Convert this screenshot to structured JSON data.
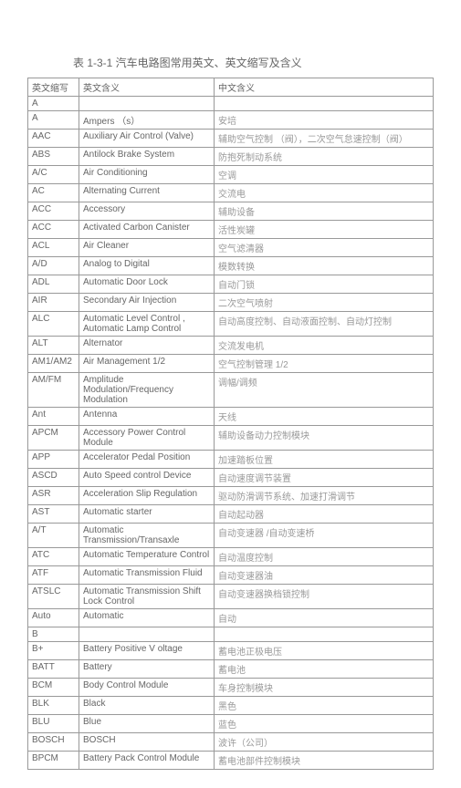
{
  "title": "表 1-3-1  汽车电路图常用英文、英文缩写及含义",
  "headers": {
    "abbr": "英文缩写",
    "en": "英文含义",
    "cn": "中文含义"
  },
  "rows": [
    {
      "abbr": "A",
      "en": "",
      "cn": ""
    },
    {
      "abbr": "A",
      "en": "Ampers （s）",
      "cn": "安培"
    },
    {
      "abbr": "AAC",
      "en": "Auxiliary Air Control (Valve)",
      "cn": "辅助空气控制 （阀），二次空气怠速控制（阀）"
    },
    {
      "abbr": "ABS",
      "en": "Antilock Brake System",
      "cn": "防抱死制动系统"
    },
    {
      "abbr": "A/C",
      "en": "Air Conditioning",
      "cn": "空调"
    },
    {
      "abbr": "AC",
      "en": "Alternating Current",
      "cn": "交流电"
    },
    {
      "abbr": "ACC",
      "en": "Accessory",
      "cn": "辅助设备"
    },
    {
      "abbr": "ACC",
      "en": "Activated Carbon Canister",
      "cn": "活性炭罐"
    },
    {
      "abbr": "ACL",
      "en": "Air Cleaner",
      "cn": "空气滤清器"
    },
    {
      "abbr": "A/D",
      "en": "Analog to Digital",
      "cn": "模数转换"
    },
    {
      "abbr": "ADL",
      "en": "Automatic Door Lock",
      "cn": "自动门锁"
    },
    {
      "abbr": "AIR",
      "en": "Secondary Air Injection",
      "cn": "二次空气喷射"
    },
    {
      "abbr": "ALC",
      "en": "Automatic Level Control , Automatic Lamp Control",
      "cn": "自动高度控制、自动液面控制、自动灯控制"
    },
    {
      "abbr": "ALT",
      "en": "Alternator",
      "cn": "交流发电机"
    },
    {
      "abbr": "AM1/AM2",
      "en": "Air Management 1/2",
      "cn": "空气控制管理  1/2"
    },
    {
      "abbr": "AM/FM",
      "en": "Amplitude Modulation/Frequency Modulation",
      "cn": "调幅/调频"
    },
    {
      "abbr": "Ant",
      "en": "Antenna",
      "cn": "天线"
    },
    {
      "abbr": "APCM",
      "en": "Accessory Power Control Module",
      "cn": "辅助设备动力控制模块"
    },
    {
      "abbr": "APP",
      "en": "Accelerator Pedal Position",
      "cn": "加速踏板位置"
    },
    {
      "abbr": "ASCD",
      "en": "Auto Speed control Device",
      "cn": "自动速度调节装置"
    },
    {
      "abbr": "ASR",
      "en": "Acceleration Slip Regulation",
      "cn": "驱动防滑调节系统、加速打滑调节"
    },
    {
      "abbr": "AST",
      "en": "Automatic starter",
      "cn": "自动起动器"
    },
    {
      "abbr": "A/T",
      "en": "Automatic Transmission/Transaxle",
      "cn": "自动变速器 /自动变速桥"
    },
    {
      "abbr": "ATC",
      "en": "Automatic Temperature Control",
      "cn": "自动温度控制"
    },
    {
      "abbr": "ATF",
      "en": "Automatic Transmission Fluid",
      "cn": "自动变速器油"
    },
    {
      "abbr": "ATSLC",
      "en": "Automatic Transmission Shift Lock Control",
      "cn": "自动变速器换档锁控制"
    },
    {
      "abbr": "Auto",
      "en": "Automatic",
      "cn": "自动"
    },
    {
      "abbr": "B",
      "en": "",
      "cn": ""
    },
    {
      "abbr": "B+",
      "en": "Battery Positive V oltage",
      "cn": "蓄电池正极电压"
    },
    {
      "abbr": "BATT",
      "en": "Battery",
      "cn": "蓄电池"
    },
    {
      "abbr": "BCM",
      "en": "Body Control Module",
      "cn": "车身控制模块"
    },
    {
      "abbr": "BLK",
      "en": "Black",
      "cn": "黑色"
    },
    {
      "abbr": "BLU",
      "en": "Blue",
      "cn": "蓝色"
    },
    {
      "abbr": "BOSCH",
      "en": "BOSCH",
      "cn": "波许（公司）"
    },
    {
      "abbr": "BPCM",
      "en": "Battery Pack Control Module",
      "cn": "蓄电池部件控制模块"
    }
  ]
}
